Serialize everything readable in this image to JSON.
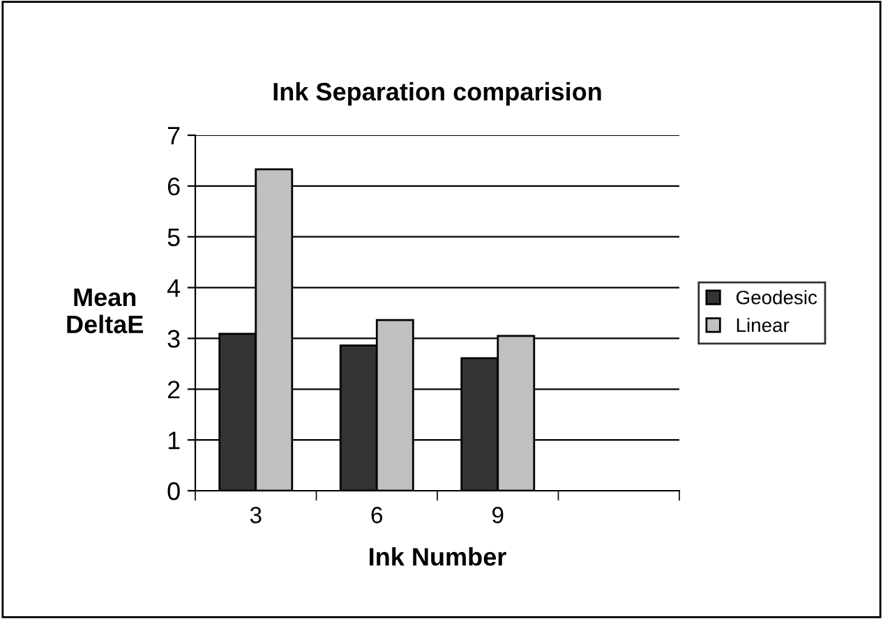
{
  "chart_data": {
    "type": "bar",
    "title": "Ink Separation comparision",
    "xlabel": "Ink Number",
    "ylabel": "Mean\nDeltaE",
    "categories": [
      "3",
      "6",
      "9",
      null
    ],
    "series": [
      {
        "name": "Geodesic",
        "color": "#333333",
        "values": [
          3.09,
          2.86,
          2.61,
          null
        ]
      },
      {
        "name": "Linear",
        "color": "#c0c0c0",
        "values": [
          6.33,
          3.36,
          3.05,
          null
        ]
      }
    ],
    "ylim": [
      0,
      7
    ],
    "yticks": [
      0,
      1,
      2,
      3,
      4,
      5,
      6,
      7
    ],
    "grid": "y",
    "legend": "right"
  }
}
